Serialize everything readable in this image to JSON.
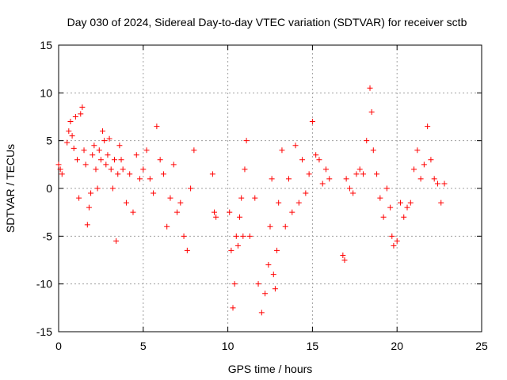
{
  "chart_data": {
    "type": "scatter",
    "title": "Day 030 of 2024, Sidereal Day-to-day VTEC variation (SDTVAR) for receiver sctb",
    "xlabel": "GPS time / hours",
    "ylabel": "SDTVAR / TECUs",
    "xlim": [
      0,
      25
    ],
    "ylim": [
      -15,
      15
    ],
    "xticks": [
      0,
      5,
      10,
      15,
      20,
      25
    ],
    "yticks": [
      -15,
      -10,
      -5,
      0,
      5,
      10,
      15
    ],
    "grid": true,
    "marker": "+",
    "color": "#ff0000",
    "series": [
      {
        "name": "SDTVAR",
        "x": [
          0.0,
          0.1,
          0.2,
          0.5,
          0.6,
          0.7,
          0.8,
          0.9,
          1.0,
          1.1,
          1.2,
          1.3,
          1.4,
          1.5,
          1.6,
          1.7,
          1.8,
          1.9,
          2.0,
          2.1,
          2.2,
          2.3,
          2.4,
          2.5,
          2.6,
          2.7,
          2.8,
          2.9,
          3.0,
          3.1,
          3.2,
          3.3,
          3.4,
          3.5,
          3.6,
          3.7,
          3.8,
          4.0,
          4.2,
          4.4,
          4.6,
          4.8,
          5.0,
          5.2,
          5.4,
          5.6,
          5.8,
          6.0,
          6.2,
          6.4,
          6.6,
          6.8,
          7.0,
          7.2,
          7.4,
          7.6,
          7.8,
          8.0,
          9.1,
          9.2,
          9.3,
          10.1,
          10.2,
          10.3,
          10.4,
          10.5,
          10.6,
          10.7,
          10.8,
          10.9,
          11.0,
          11.1,
          11.3,
          11.6,
          11.8,
          12.0,
          12.2,
          12.4,
          12.5,
          12.6,
          12.7,
          12.8,
          12.9,
          13.0,
          13.2,
          13.4,
          13.6,
          13.8,
          14.0,
          14.2,
          14.4,
          14.6,
          14.8,
          15.0,
          15.2,
          15.4,
          15.6,
          15.8,
          16.0,
          16.8,
          16.9,
          17.0,
          17.2,
          17.4,
          17.6,
          17.8,
          18.0,
          18.2,
          18.4,
          18.5,
          18.6,
          18.8,
          19.0,
          19.2,
          19.4,
          19.6,
          19.7,
          19.8,
          20.0,
          20.2,
          20.4,
          20.6,
          20.8,
          21.0,
          21.2,
          21.4,
          21.6,
          21.8,
          22.0,
          22.2,
          22.4,
          22.6,
          22.8
        ],
        "values": [
          2.5,
          2.0,
          1.5,
          4.8,
          6.0,
          7.0,
          5.5,
          4.2,
          7.5,
          3.0,
          -1.0,
          7.8,
          8.5,
          4.0,
          2.5,
          -3.8,
          -2.0,
          -0.5,
          3.5,
          4.5,
          2.0,
          0.0,
          4.0,
          3.0,
          6.0,
          5.0,
          2.5,
          3.5,
          5.2,
          2.0,
          0.0,
          3.0,
          -5.5,
          1.5,
          4.5,
          3.0,
          2.0,
          -1.5,
          1.5,
          -2.5,
          3.5,
          1.0,
          2.0,
          4.0,
          1.0,
          -0.5,
          6.5,
          3.0,
          1.5,
          -4.0,
          -1.0,
          2.5,
          -2.5,
          -1.5,
          -5.0,
          -6.5,
          0.0,
          4.0,
          1.5,
          -2.5,
          -3.0,
          -2.5,
          -6.5,
          -12.5,
          -10.0,
          -5.0,
          -6.0,
          -3.0,
          -1.0,
          -5.0,
          2.0,
          5.0,
          -5.0,
          -1.0,
          -10.0,
          -13.0,
          -11.0,
          -8.0,
          -4.0,
          1.0,
          -9.0,
          -10.5,
          -6.5,
          -1.5,
          4.0,
          -4.0,
          1.0,
          -2.5,
          4.5,
          -1.5,
          3.0,
          -0.5,
          1.5,
          7.0,
          3.5,
          3.0,
          0.5,
          2.0,
          1.0,
          -7.0,
          -7.5,
          1.0,
          0.0,
          -0.5,
          1.5,
          2.0,
          1.5,
          5.0,
          10.5,
          8.0,
          4.0,
          1.5,
          -1.0,
          -3.0,
          0.0,
          -2.0,
          -5.0,
          -6.0,
          -5.5,
          -1.5,
          -3.0,
          -2.0,
          -1.5,
          2.0,
          4.0,
          1.0,
          2.5,
          6.5,
          3.0,
          1.0,
          0.5,
          -1.5,
          0.5
        ]
      }
    ]
  }
}
